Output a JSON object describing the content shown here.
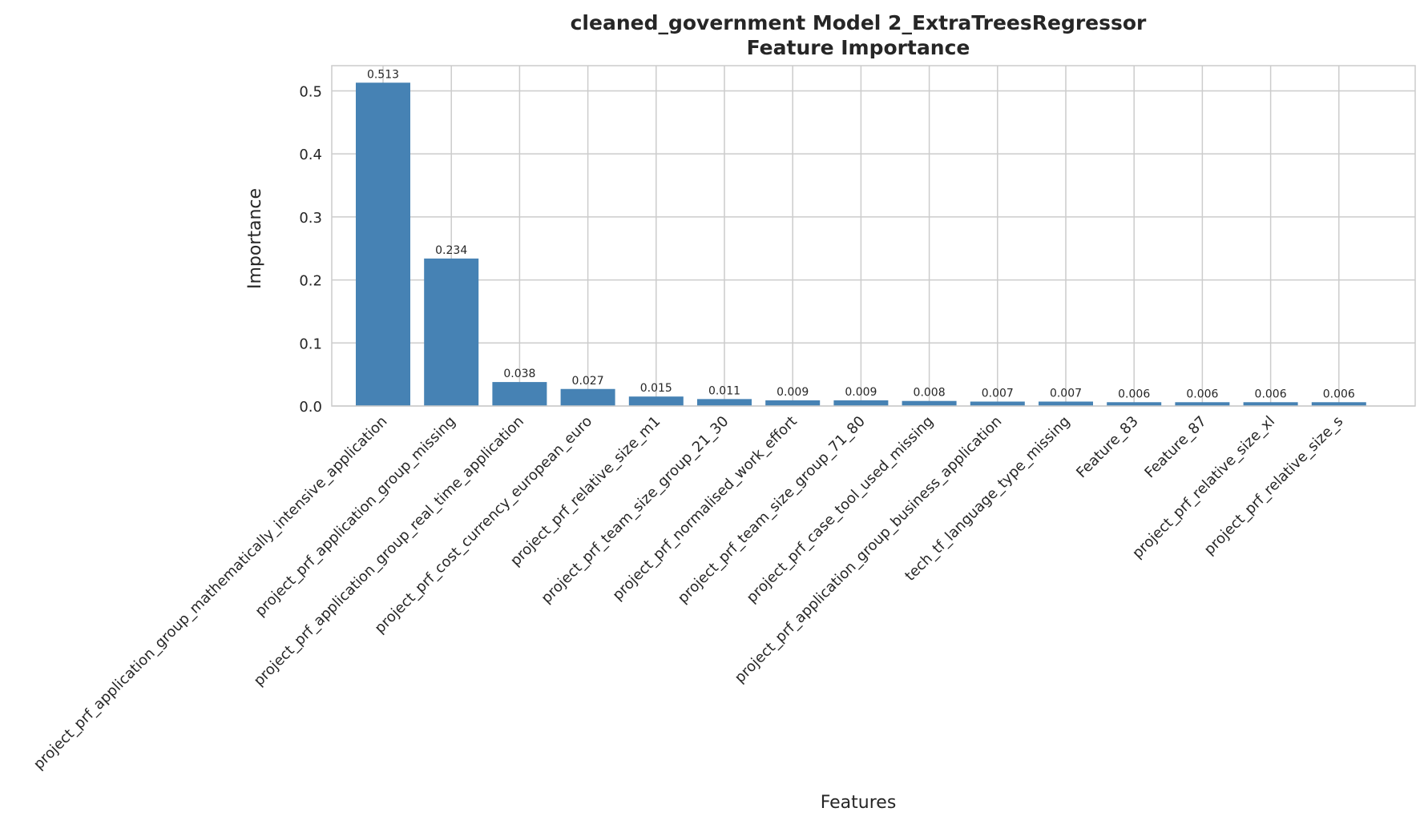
{
  "chart_data": {
    "type": "bar",
    "title_line1": "cleaned_government Model 2_ExtraTreesRegressor",
    "title_line2": "Feature Importance",
    "xlabel": "Features",
    "ylabel": "Importance",
    "ylim": [
      0,
      0.54
    ],
    "yticks": [
      0.0,
      0.1,
      0.2,
      0.3,
      0.4,
      0.5
    ],
    "ytick_labels": [
      "0.0",
      "0.1",
      "0.2",
      "0.3",
      "0.4",
      "0.5"
    ],
    "grid": true,
    "bar_color": "#4682b4",
    "categories": [
      "project_prf_application_group_mathematically_intensive_application",
      "project_prf_application_group_missing",
      "project_prf_application_group_real_time_application",
      "project_prf_cost_currency_european_euro",
      "project_prf_relative_size_m1",
      "project_prf_team_size_group_21_30",
      "project_prf_normalised_work_effort",
      "project_prf_team_size_group_71_80",
      "project_prf_case_tool_used_missing",
      "project_prf_application_group_business_application",
      "tech_tf_language_type_missing",
      "Feature_83",
      "Feature_87",
      "project_prf_relative_size_xl",
      "project_prf_relative_size_s"
    ],
    "values": [
      0.513,
      0.234,
      0.038,
      0.027,
      0.015,
      0.011,
      0.009,
      0.009,
      0.008,
      0.007,
      0.007,
      0.006,
      0.006,
      0.006,
      0.006
    ],
    "value_labels": [
      "0.513",
      "0.234",
      "0.038",
      "0.027",
      "0.015",
      "0.011",
      "0.009",
      "0.009",
      "0.008",
      "0.007",
      "0.007",
      "0.006",
      "0.006",
      "0.006",
      "0.006"
    ]
  }
}
